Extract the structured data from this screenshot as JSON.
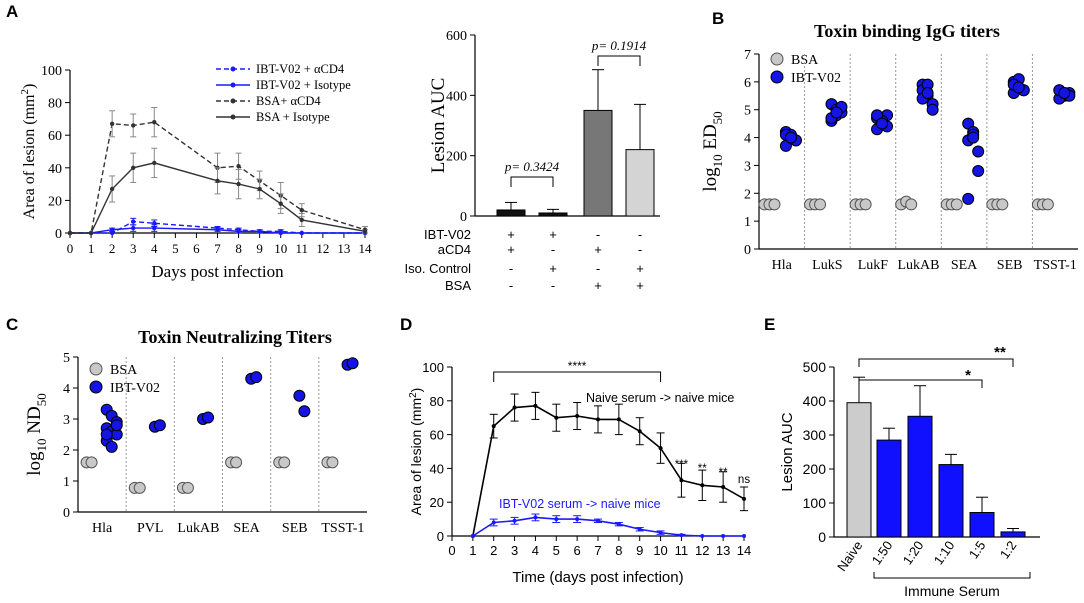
{
  "panel_labels": [
    "A",
    "B",
    "C",
    "D",
    "E"
  ],
  "chart_data": [
    {
      "id": "A1",
      "type": "line",
      "xlabel": "Days post infection",
      "ylabel": "Area of lesion (mm",
      "ylabel_sup": "2",
      "ylabel_close": ")",
      "xlim": [
        0,
        14
      ],
      "ylim": [
        0,
        100
      ],
      "xticks": [
        "0",
        "1",
        "2",
        "3",
        "4",
        "5",
        "6",
        "7",
        "8",
        "9",
        "10",
        "11",
        "12",
        "13",
        "14"
      ],
      "yticks": [
        "0",
        "20",
        "40",
        "60",
        "80",
        "100"
      ],
      "x": [
        0,
        1,
        2,
        3,
        4,
        7,
        8,
        9,
        10,
        11,
        14
      ],
      "series": [
        {
          "name": "IBT-V02 + αCD4",
          "color": "#1a1aff",
          "dash": true,
          "values": [
            0,
            0,
            0,
            7,
            6,
            3,
            2,
            1,
            1,
            0,
            0
          ],
          "err": [
            0,
            0,
            0,
            2,
            2,
            1,
            1,
            1,
            1,
            0,
            0
          ]
        },
        {
          "name": "IBT-V02 + Isotype",
          "color": "#1a1aff",
          "dash": false,
          "values": [
            0,
            0,
            2,
            3,
            3,
            2,
            1,
            1,
            0,
            0,
            0
          ],
          "err": [
            0,
            0,
            1,
            2,
            2,
            1,
            1,
            0,
            0,
            0,
            0
          ]
        },
        {
          "name": "BSA+ αCD4",
          "color": "#333333",
          "dash": true,
          "values": [
            0,
            0,
            67,
            66,
            68,
            40,
            41,
            32,
            23,
            14,
            2
          ],
          "err": [
            0,
            0,
            8,
            7,
            9,
            9,
            8,
            6,
            8,
            4,
            2
          ]
        },
        {
          "name": "BSA + Isotype",
          "color": "#333333",
          "dash": false,
          "values": [
            0,
            0,
            27,
            40,
            43,
            32,
            30,
            27,
            18,
            8,
            1
          ],
          "err": [
            0,
            0,
            8,
            9,
            9,
            8,
            9,
            6,
            6,
            4,
            1
          ]
        }
      ]
    },
    {
      "id": "A2",
      "type": "bar",
      "ylabel": "Lesion AUC",
      "ylim": [
        0,
        600
      ],
      "yticks": [
        "0",
        "200",
        "400",
        "600"
      ],
      "values": [
        20,
        10,
        350,
        220
      ],
      "err": [
        25,
        12,
        135,
        150
      ],
      "colors": [
        "#111111",
        "#111111",
        "#777777",
        "#d4d4d4"
      ],
      "pvalues": [
        "p= 0.3424",
        "p= 0.1914"
      ],
      "rows": [
        {
          "label": "IBT-V02",
          "signs": [
            "+",
            "+",
            "-",
            "-"
          ]
        },
        {
          "label": "aCD4",
          "signs": [
            "+",
            "-",
            "+",
            "-"
          ]
        },
        {
          "label": "Iso. Control",
          "signs": [
            "-",
            "+",
            "-",
            "+"
          ]
        },
        {
          "label": "BSA",
          "signs": [
            "-",
            "-",
            "+",
            "+"
          ]
        }
      ]
    },
    {
      "id": "B",
      "type": "scatter",
      "title": "Toxin binding IgG titers",
      "ylabel_main": "log",
      "ylabel_sub": "10",
      "ylabel_rest": " ED",
      "ylabel_sub2": "50",
      "ylim": [
        0,
        7
      ],
      "yticks": [
        "0",
        "1",
        "2",
        "3",
        "4",
        "5",
        "6",
        "7"
      ],
      "categories": [
        "Hla",
        "LukS",
        "LukF",
        "LukAB",
        "SEA",
        "SEB",
        "TSST-1"
      ],
      "legend": [
        "BSA",
        "IBT-V02"
      ],
      "bsa": [
        [
          1.6,
          1.6,
          1.6
        ],
        [
          1.6,
          1.6,
          1.6
        ],
        [
          1.6,
          1.6,
          1.6
        ],
        [
          1.6,
          1.7,
          1.6
        ],
        [
          1.6,
          1.6,
          1.6
        ],
        [
          1.6,
          1.6,
          1.6
        ],
        [
          1.6,
          1.6,
          1.6
        ]
      ],
      "ibt": [
        [
          4.2,
          4.0,
          3.9,
          3.7,
          4.1,
          3.9,
          4.1,
          4.0
        ],
        [
          5.2,
          4.8,
          4.9,
          4.6,
          5.0,
          5.1,
          4.7,
          4.9
        ],
        [
          4.7,
          4.5,
          4.8,
          4.3,
          4.6,
          4.4,
          4.8,
          4.5
        ],
        [
          5.9,
          5.5,
          5.2,
          5.7,
          5.9,
          5.0,
          5.4,
          5.6
        ],
        [
          4.5,
          4.2,
          3.5,
          3.9,
          4.1,
          2.8,
          1.8,
          4.0
        ],
        [
          6.0,
          5.8,
          5.7,
          5.6,
          6.1,
          5.7,
          5.9,
          5.8
        ],
        [
          5.7,
          5.5,
          5.6,
          5.4,
          5.6,
          5.5,
          5.7,
          5.6
        ]
      ]
    },
    {
      "id": "C",
      "type": "scatter",
      "title": "Toxin Neutralizing Titers",
      "ylabel_main": "log",
      "ylabel_sub": "10",
      "ylabel_rest": " ND",
      "ylabel_sub2": "50",
      "ylim": [
        0,
        5
      ],
      "yticks": [
        "0",
        "1",
        "2",
        "3",
        "4",
        "5"
      ],
      "categories": [
        "Hla",
        "PVL",
        "LukAB",
        "SEA",
        "SEB",
        "TSST-1"
      ],
      "legend": [
        "BSA",
        "IBT-V02"
      ],
      "bsa": [
        [
          1.6,
          1.6
        ],
        [
          0.78,
          0.78
        ],
        [
          0.78,
          0.78
        ],
        [
          1.6,
          1.6
        ],
        [
          1.6,
          1.6
        ],
        [
          1.6,
          1.6
        ]
      ],
      "ibt": [
        [
          3.3,
          3.1,
          2.9,
          2.7,
          2.6,
          2.5,
          2.3,
          2.1,
          2.8,
          2.5
        ],
        [
          2.75,
          2.8
        ],
        [
          3.0,
          3.05
        ],
        [
          4.3,
          4.35
        ],
        [
          3.75,
          3.25
        ],
        [
          4.75,
          4.8
        ]
      ]
    },
    {
      "id": "D",
      "type": "line",
      "xlabel": "Time (days post infection)",
      "ylabel": "Area of lesion (mm",
      "ylabel_sup": "2",
      "ylabel_close": ")",
      "xlim": [
        0,
        14
      ],
      "ylim": [
        0,
        100
      ],
      "xticks": [
        "0",
        "1",
        "2",
        "3",
        "4",
        "5",
        "6",
        "7",
        "8",
        "9",
        "10",
        "11",
        "12",
        "13",
        "14"
      ],
      "yticks": [
        "0",
        "20",
        "40",
        "60",
        "80",
        "100"
      ],
      "x": [
        1,
        2,
        3,
        4,
        5,
        6,
        7,
        8,
        9,
        10,
        11,
        12,
        13,
        14
      ],
      "series": [
        {
          "name": "Naive serum -> naive mice",
          "color": "#000000",
          "values": [
            0,
            65,
            76,
            77,
            70,
            71,
            69,
            69,
            62,
            52,
            33,
            30,
            29,
            22
          ],
          "err": [
            0,
            7,
            8,
            8,
            8,
            8,
            8,
            9,
            8,
            9,
            10,
            9,
            9,
            7
          ]
        },
        {
          "name": "IBT-V02 serum -> naive mice",
          "color": "#1a1aff",
          "values": [
            0,
            8,
            9,
            11,
            10,
            10,
            9,
            7,
            4,
            2,
            0.5,
            0,
            0,
            0
          ],
          "err": [
            0,
            2,
            2,
            2,
            2,
            2,
            1,
            1,
            1,
            1,
            0.5,
            0,
            0,
            0
          ]
        }
      ],
      "bracket_label": "****",
      "sig": [
        {
          "x": 11,
          "label": "***"
        },
        {
          "x": 12,
          "label": "**"
        },
        {
          "x": 13,
          "label": "**"
        },
        {
          "x": 14,
          "label": "ns"
        }
      ]
    },
    {
      "id": "E",
      "type": "bar",
      "ylabel": "Lesion AUC",
      "ylim": [
        0,
        500
      ],
      "yticks": [
        "0",
        "100",
        "200",
        "300",
        "400",
        "500"
      ],
      "categories": [
        "Naive",
        "1:50",
        "1:20",
        "1:10",
        "1:5",
        "1:2"
      ],
      "values": [
        395,
        285,
        355,
        213,
        72,
        15
      ],
      "err": [
        75,
        35,
        90,
        30,
        45,
        10
      ],
      "colors": [
        "#cccccc",
        "#1010ff",
        "#1010ff",
        "#1010ff",
        "#1010ff",
        "#1010ff"
      ],
      "group_label": "Immune Serum",
      "sig": [
        "*",
        "**"
      ]
    }
  ]
}
